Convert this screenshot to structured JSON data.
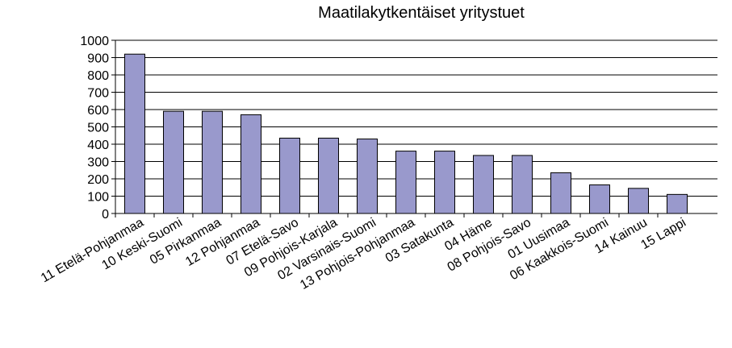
{
  "chart_data": {
    "type": "bar",
    "title": "Maatilakytkentäiset yritystuet",
    "categories": [
      "11 Etelä-Pohjanmaa",
      "10 Keski-Suomi",
      "05 Pirkanmaa",
      "12 Pohjanmaa",
      "07 Etelä-Savo",
      "09 Pohjois-Karjala",
      "02 Varsinais-Suomi",
      "13 Pohjois-Pohjanmaa",
      "03 Satakunta",
      "04 Häme",
      "08 Pohjois-Savo",
      "01 Uusimaa",
      "06 Kaakkois-Suomi",
      "14 Kainuu",
      "15 Lappi"
    ],
    "values": [
      920,
      590,
      590,
      570,
      435,
      435,
      430,
      360,
      360,
      335,
      335,
      235,
      165,
      145,
      110
    ],
    "color": "#9999cc",
    "ylim": [
      0,
      1000
    ],
    "yticks": [
      0,
      100,
      200,
      300,
      400,
      500,
      600,
      700,
      800,
      900,
      1000
    ],
    "grid": true
  }
}
